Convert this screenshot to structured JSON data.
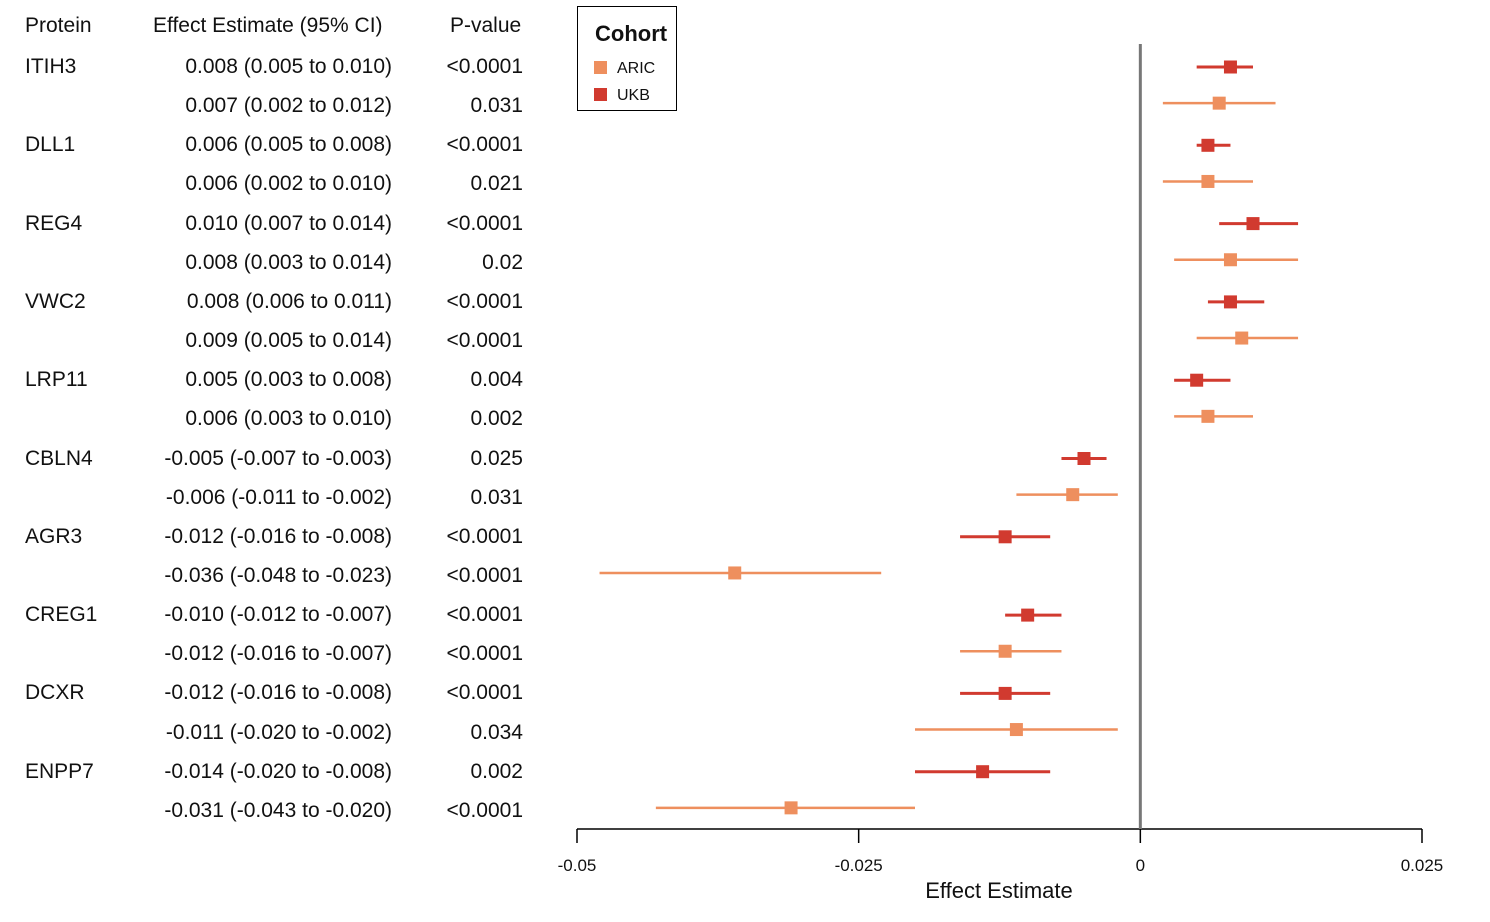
{
  "header": {
    "protein": "Protein",
    "estimate": "Effect Estimate (95% CI)",
    "pvalue": "P-value"
  },
  "legend": {
    "title": "Cohort",
    "items": [
      {
        "label": "ARIC",
        "color": "#EE8F5E"
      },
      {
        "label": "UKB",
        "color": "#D13A2F"
      }
    ]
  },
  "rows": [
    {
      "protein": "ITIH3",
      "estimate": "0.008 (0.005 to 0.010)",
      "pvalue": "<0.0001"
    },
    {
      "protein": "",
      "estimate": "0.007 (0.002 to 0.012)",
      "pvalue": "0.031"
    },
    {
      "protein": "DLL1",
      "estimate": "0.006 (0.005 to 0.008)",
      "pvalue": "<0.0001"
    },
    {
      "protein": "",
      "estimate": "0.006 (0.002 to 0.010)",
      "pvalue": "0.021"
    },
    {
      "protein": "REG4",
      "estimate": "0.010 (0.007 to 0.014)",
      "pvalue": "<0.0001"
    },
    {
      "protein": "",
      "estimate": "0.008 (0.003 to 0.014)",
      "pvalue": "0.02"
    },
    {
      "protein": "VWC2",
      "estimate": "0.008 (0.006 to 0.011)",
      "pvalue": "<0.0001"
    },
    {
      "protein": "",
      "estimate": "0.009 (0.005 to 0.014)",
      "pvalue": "<0.0001"
    },
    {
      "protein": "LRP11",
      "estimate": "0.005 (0.003 to 0.008)",
      "pvalue": "0.004"
    },
    {
      "protein": "",
      "estimate": "0.006 (0.003 to 0.010)",
      "pvalue": "0.002"
    },
    {
      "protein": "CBLN4",
      "estimate": "-0.005 (-0.007 to -0.003)",
      "pvalue": "0.025"
    },
    {
      "protein": "",
      "estimate": "-0.006 (-0.011 to -0.002)",
      "pvalue": "0.031"
    },
    {
      "protein": "AGR3",
      "estimate": "-0.012 (-0.016 to -0.008)",
      "pvalue": "<0.0001"
    },
    {
      "protein": "",
      "estimate": "-0.036 (-0.048 to -0.023)",
      "pvalue": "<0.0001"
    },
    {
      "protein": "CREG1",
      "estimate": "-0.010 (-0.012 to -0.007)",
      "pvalue": "<0.0001"
    },
    {
      "protein": "",
      "estimate": "-0.012 (-0.016 to -0.007)",
      "pvalue": "<0.0001"
    },
    {
      "protein": "DCXR",
      "estimate": "-0.012 (-0.016 to -0.008)",
      "pvalue": "<0.0001"
    },
    {
      "protein": "",
      "estimate": "-0.011 (-0.020 to -0.002)",
      "pvalue": "0.034"
    },
    {
      "protein": "ENPP7",
      "estimate": "-0.014 (-0.020 to -0.008)",
      "pvalue": "0.002"
    },
    {
      "protein": "",
      "estimate": "-0.031 (-0.043 to -0.020)",
      "pvalue": "<0.0001"
    }
  ],
  "chart_data": {
    "type": "scatter",
    "subtype": "forest",
    "xlabel": "Effect Estimate",
    "xlim": [
      -0.05,
      0.025
    ],
    "xticks": [
      -0.05,
      -0.025,
      0,
      0.025
    ],
    "xtick_labels": [
      "-0.05",
      "-0.025",
      "0",
      "0.025"
    ],
    "reference_line": 0,
    "legend_title": "Cohort",
    "legend_position": "top-left",
    "series": [
      {
        "name": "UKB",
        "color": "#D13A2F"
      },
      {
        "name": "ARIC",
        "color": "#EE8F5E"
      }
    ],
    "points": [
      {
        "protein": "ITIH3",
        "cohort": "UKB",
        "estimate": 0.008,
        "lower": 0.005,
        "upper": 0.01
      },
      {
        "protein": "ITIH3",
        "cohort": "ARIC",
        "estimate": 0.007,
        "lower": 0.002,
        "upper": 0.012
      },
      {
        "protein": "DLL1",
        "cohort": "UKB",
        "estimate": 0.006,
        "lower": 0.005,
        "upper": 0.008
      },
      {
        "protein": "DLL1",
        "cohort": "ARIC",
        "estimate": 0.006,
        "lower": 0.002,
        "upper": 0.01
      },
      {
        "protein": "REG4",
        "cohort": "UKB",
        "estimate": 0.01,
        "lower": 0.007,
        "upper": 0.014
      },
      {
        "protein": "REG4",
        "cohort": "ARIC",
        "estimate": 0.008,
        "lower": 0.003,
        "upper": 0.014
      },
      {
        "protein": "VWC2",
        "cohort": "UKB",
        "estimate": 0.008,
        "lower": 0.006,
        "upper": 0.011
      },
      {
        "protein": "VWC2",
        "cohort": "ARIC",
        "estimate": 0.009,
        "lower": 0.005,
        "upper": 0.014
      },
      {
        "protein": "LRP11",
        "cohort": "UKB",
        "estimate": 0.005,
        "lower": 0.003,
        "upper": 0.008
      },
      {
        "protein": "LRP11",
        "cohort": "ARIC",
        "estimate": 0.006,
        "lower": 0.003,
        "upper": 0.01
      },
      {
        "protein": "CBLN4",
        "cohort": "UKB",
        "estimate": -0.005,
        "lower": -0.007,
        "upper": -0.003
      },
      {
        "protein": "CBLN4",
        "cohort": "ARIC",
        "estimate": -0.006,
        "lower": -0.011,
        "upper": -0.002
      },
      {
        "protein": "AGR3",
        "cohort": "UKB",
        "estimate": -0.012,
        "lower": -0.016,
        "upper": -0.008
      },
      {
        "protein": "AGR3",
        "cohort": "ARIC",
        "estimate": -0.036,
        "lower": -0.048,
        "upper": -0.023
      },
      {
        "protein": "CREG1",
        "cohort": "UKB",
        "estimate": -0.01,
        "lower": -0.012,
        "upper": -0.007
      },
      {
        "protein": "CREG1",
        "cohort": "ARIC",
        "estimate": -0.012,
        "lower": -0.016,
        "upper": -0.007
      },
      {
        "protein": "DCXR",
        "cohort": "UKB",
        "estimate": -0.012,
        "lower": -0.016,
        "upper": -0.008
      },
      {
        "protein": "DCXR",
        "cohort": "ARIC",
        "estimate": -0.011,
        "lower": -0.02,
        "upper": -0.002
      },
      {
        "protein": "ENPP7",
        "cohort": "UKB",
        "estimate": -0.014,
        "lower": -0.02,
        "upper": -0.008
      },
      {
        "protein": "ENPP7",
        "cohort": "ARIC",
        "estimate": -0.031,
        "lower": -0.043,
        "upper": -0.02
      }
    ]
  }
}
